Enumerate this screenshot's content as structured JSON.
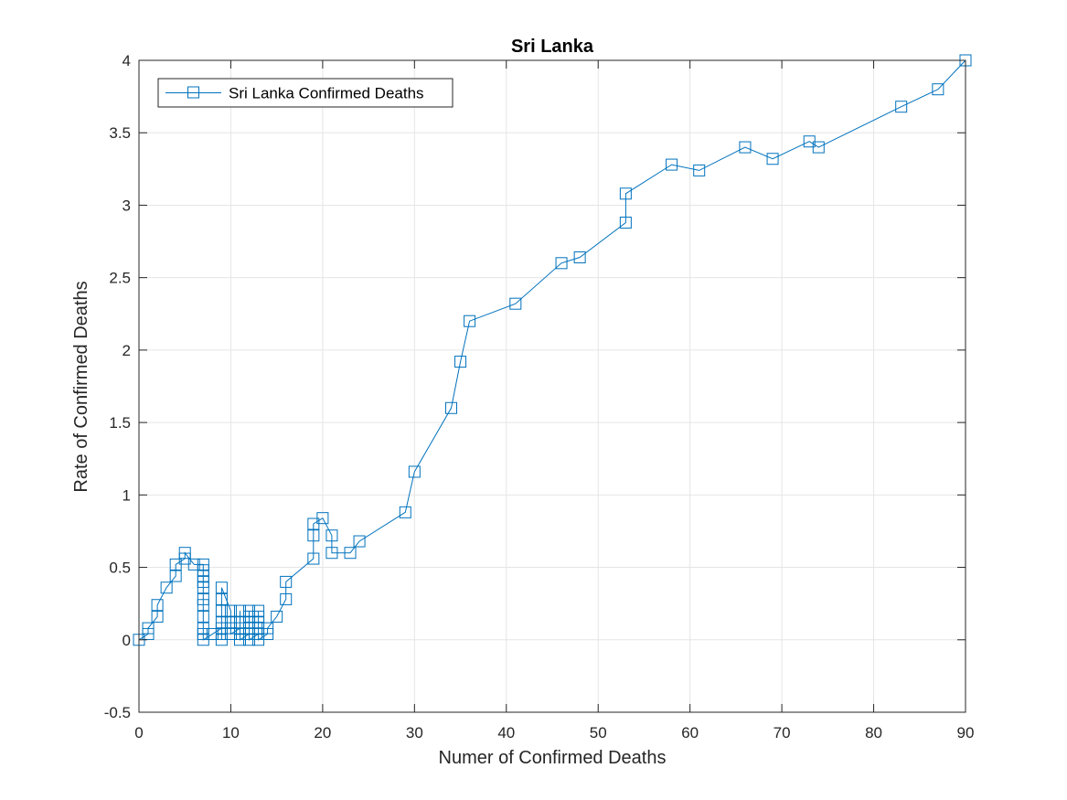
{
  "chart_data": {
    "type": "line",
    "title": "Sri Lanka",
    "xlabel": "Numer of Confirmed Deaths",
    "ylabel": "Rate of Confirmed Deaths",
    "xlim": [
      0,
      90
    ],
    "ylim": [
      -0.5,
      4
    ],
    "xticks": [
      0,
      10,
      20,
      30,
      40,
      50,
      60,
      70,
      80,
      90
    ],
    "yticks": [
      -0.5,
      0,
      0.5,
      1,
      1.5,
      2,
      2.5,
      3,
      3.5,
      4
    ],
    "xtick_labels": [
      "0",
      "10",
      "20",
      "30",
      "40",
      "50",
      "60",
      "70",
      "80",
      "90"
    ],
    "ytick_labels": [
      "-0.5",
      "0",
      "0.5",
      "1",
      "1.5",
      "2",
      "2.5",
      "3",
      "3.5",
      "4"
    ],
    "grid": true,
    "legend_position": "top-left",
    "marker": "square",
    "series": [
      {
        "name": "Sri Lanka Confirmed Deaths",
        "color": "#0072BD",
        "points": [
          [
            0,
            0
          ],
          [
            1,
            0.04
          ],
          [
            1,
            0.08
          ],
          [
            2,
            0.16
          ],
          [
            2,
            0.24
          ],
          [
            3,
            0.36
          ],
          [
            4,
            0.44
          ],
          [
            4,
            0.52
          ],
          [
            5,
            0.56
          ],
          [
            5,
            0.6
          ],
          [
            6,
            0.52
          ],
          [
            7,
            0.52
          ],
          [
            7,
            0.48
          ],
          [
            7,
            0.44
          ],
          [
            7,
            0.4
          ],
          [
            7,
            0.36
          ],
          [
            7,
            0.28
          ],
          [
            7,
            0.24
          ],
          [
            7,
            0.16
          ],
          [
            7,
            0.08
          ],
          [
            7,
            0.04
          ],
          [
            7,
            0
          ],
          [
            8,
            0.04
          ],
          [
            9,
            0.08
          ],
          [
            9,
            0.04
          ],
          [
            9,
            0
          ],
          [
            9,
            0.12
          ],
          [
            9,
            0.2
          ],
          [
            9,
            0.28
          ],
          [
            9,
            0.36
          ],
          [
            10,
            0.2
          ],
          [
            10,
            0.12
          ],
          [
            10,
            0.08
          ],
          [
            10,
            0.04
          ],
          [
            11,
            0.08
          ],
          [
            11,
            0.12
          ],
          [
            11,
            0.2
          ],
          [
            11,
            0.04
          ],
          [
            11,
            0
          ],
          [
            12,
            0.04
          ],
          [
            12,
            0.08
          ],
          [
            12,
            0.12
          ],
          [
            12,
            0.16
          ],
          [
            12,
            0.2
          ],
          [
            12,
            0
          ],
          [
            13,
            0.04
          ],
          [
            13,
            0.08
          ],
          [
            13,
            0.12
          ],
          [
            13,
            0.16
          ],
          [
            13,
            0.2
          ],
          [
            13,
            0
          ],
          [
            14,
            0.04
          ],
          [
            14,
            0.08
          ],
          [
            15,
            0.16
          ],
          [
            16,
            0.28
          ],
          [
            16,
            0.4
          ],
          [
            19,
            0.56
          ],
          [
            19,
            0.72
          ],
          [
            19,
            0.8
          ],
          [
            20,
            0.84
          ],
          [
            21,
            0.72
          ],
          [
            21,
            0.6
          ],
          [
            23,
            0.6
          ],
          [
            24,
            0.68
          ],
          [
            29,
            0.88
          ],
          [
            30,
            1.16
          ],
          [
            34,
            1.6
          ],
          [
            35,
            1.92
          ],
          [
            36,
            2.2
          ],
          [
            41,
            2.32
          ],
          [
            46,
            2.6
          ],
          [
            48,
            2.64
          ],
          [
            53,
            2.88
          ],
          [
            53,
            3.08
          ],
          [
            58,
            3.28
          ],
          [
            61,
            3.24
          ],
          [
            66,
            3.4
          ],
          [
            69,
            3.32
          ],
          [
            73,
            3.44
          ],
          [
            74,
            3.4
          ],
          [
            83,
            3.68
          ],
          [
            87,
            3.8
          ],
          [
            90,
            4
          ]
        ]
      }
    ]
  }
}
